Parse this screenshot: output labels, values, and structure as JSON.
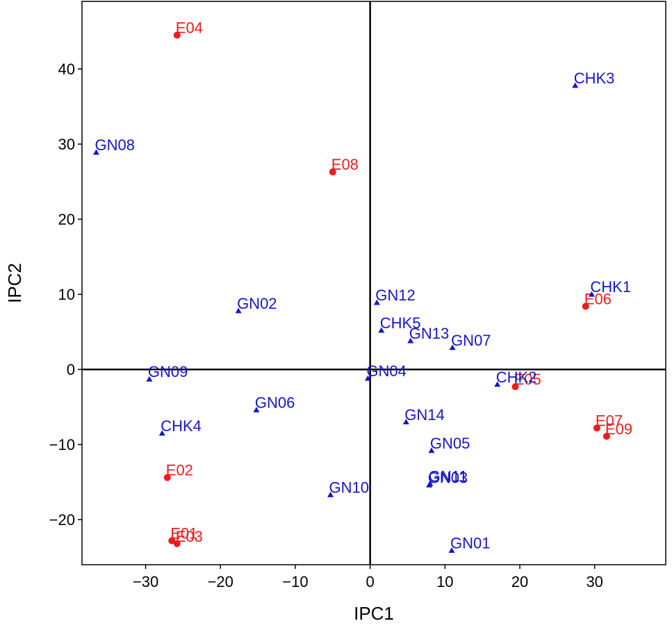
{
  "chart_data": {
    "type": "scatter",
    "title": "",
    "xlabel": "IPC1",
    "ylabel": "IPC2",
    "xlim": [
      -38.5,
      39.5
    ],
    "ylim": [
      -26,
      49
    ],
    "xticks": [
      -30,
      -20,
      -10,
      0,
      10,
      20,
      30
    ],
    "yticks": [
      -20,
      -10,
      0,
      10,
      20,
      30,
      40
    ],
    "xtick_labels": [
      "−30",
      "−20",
      "−10",
      "0",
      "10",
      "20",
      "30"
    ],
    "ytick_labels": [
      "−20",
      "−10",
      "0",
      "10",
      "20",
      "30",
      "40"
    ],
    "reference_lines": {
      "x": 0,
      "y": 0
    },
    "grid": false,
    "legend": "none",
    "colors": {
      "environment": "#ee1c1c",
      "genotype": "#1515cc"
    },
    "series": [
      {
        "group": "environment",
        "marker": "circle",
        "points": [
          {
            "label": "E01",
            "x": -26.5,
            "y": -22.8
          },
          {
            "label": "E02",
            "x": -27.1,
            "y": -14.4
          },
          {
            "label": "E03",
            "x": -25.8,
            "y": -23.2
          },
          {
            "label": "E04",
            "x": -25.8,
            "y": 44.5
          },
          {
            "label": "E05",
            "x": 19.4,
            "y": -2.3
          },
          {
            "label": "E06",
            "x": 28.8,
            "y": 8.4
          },
          {
            "label": "E07",
            "x": 30.3,
            "y": -7.8
          },
          {
            "label": "E08",
            "x": -5.0,
            "y": 26.3
          },
          {
            "label": "E09",
            "x": 31.6,
            "y": -8.9
          }
        ]
      },
      {
        "group": "genotype",
        "marker": "triangle",
        "points": [
          {
            "label": "CHK1",
            "x": 29.6,
            "y": 10.0
          },
          {
            "label": "CHK2",
            "x": 17.0,
            "y": -2.0
          },
          {
            "label": "CHK3",
            "x": 27.4,
            "y": 37.8
          },
          {
            "label": "CHK4",
            "x": -27.8,
            "y": -8.5
          },
          {
            "label": "CHK5",
            "x": 1.5,
            "y": 5.2
          },
          {
            "label": "GN01",
            "x": 10.9,
            "y": -24.1
          },
          {
            "label": "GN02",
            "x": -17.6,
            "y": 7.8
          },
          {
            "label": "GN03",
            "x": 7.9,
            "y": -15.4
          },
          {
            "label": "GN04",
            "x": -0.3,
            "y": -1.2
          },
          {
            "label": "GN05",
            "x": 8.2,
            "y": -10.8
          },
          {
            "label": "GN06",
            "x": -15.2,
            "y": -5.4
          },
          {
            "label": "GN07",
            "x": 11.0,
            "y": 2.9
          },
          {
            "label": "GN08",
            "x": -36.6,
            "y": 28.9
          },
          {
            "label": "GN09",
            "x": -29.5,
            "y": -1.3
          },
          {
            "label": "GN10",
            "x": -5.3,
            "y": -16.7
          },
          {
            "label": "GN11",
            "x": 8.0,
            "y": -15.2
          },
          {
            "label": "GN12",
            "x": 0.9,
            "y": 8.9
          },
          {
            "label": "GN13",
            "x": 5.4,
            "y": 3.8
          },
          {
            "label": "GN14",
            "x": 4.8,
            "y": -7.0
          }
        ]
      }
    ]
  }
}
